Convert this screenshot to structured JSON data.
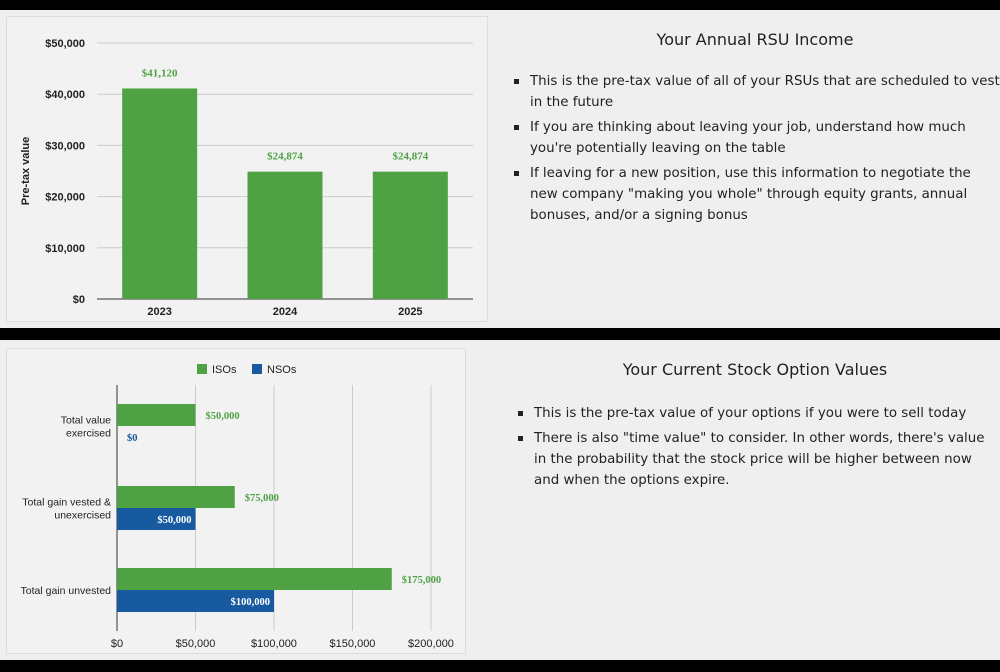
{
  "rsu_section": {
    "title": "Your Annual RSU Income",
    "bullets": [
      "This is the pre-tax value of all of your RSUs that are scheduled to vest in the future",
      "If you are thinking about leaving your job, understand how much you're potentially leaving on the table",
      "If leaving for a new position, use this information to negotiate the new company \"making you whole\" through equity grants, annual bonuses, and/or a signing bonus"
    ]
  },
  "options_section": {
    "title": "Your Current Stock Option Values",
    "bullets": [
      "This is the pre-tax value of your options if you were to sell today",
      "There is also \"time value\" to consider. In other words, there's value in the probability that the stock price will be higher between now and when the options expire."
    ]
  },
  "colors": {
    "iso_green": "#4ea244",
    "nso_blue": "#175aa0",
    "grid": "#cccccc"
  },
  "chart_data": [
    {
      "type": "bar",
      "categories": [
        "2023",
        "2024",
        "2025"
      ],
      "values": [
        41120,
        24874,
        24874
      ],
      "data_labels": [
        "$41,120",
        "$24,874",
        "$24,874"
      ],
      "ylabel": "Pre-tax value",
      "ylim": [
        0,
        50000
      ],
      "yticks": [
        0,
        10000,
        20000,
        30000,
        40000,
        50000
      ],
      "ytick_labels": [
        "$0",
        "$10,000",
        "$20,000",
        "$30,000",
        "$40,000",
        "$50,000"
      ],
      "grid": true,
      "legend": "none"
    },
    {
      "type": "bar",
      "orientation": "horizontal",
      "categories": [
        [
          "Total value",
          "exercised"
        ],
        [
          "Total gain vested &",
          "unexercised"
        ],
        [
          "Total gain unvested"
        ]
      ],
      "series": [
        {
          "name": "ISOs",
          "values": [
            50000,
            75000,
            175000
          ],
          "labels": [
            "$50,000",
            "$75,000",
            "$175,000"
          ]
        },
        {
          "name": "NSOs",
          "values": [
            0,
            50000,
            100000
          ],
          "labels": [
            "$0",
            "$50,000",
            "$100,000"
          ]
        }
      ],
      "xlim": [
        0,
        200000
      ],
      "xticks": [
        0,
        50000,
        100000,
        150000,
        200000
      ],
      "xtick_labels": [
        "$0",
        "$50,000",
        "$100,000",
        "$150,000",
        "$200,000"
      ],
      "grid": true,
      "legend": "top"
    }
  ]
}
